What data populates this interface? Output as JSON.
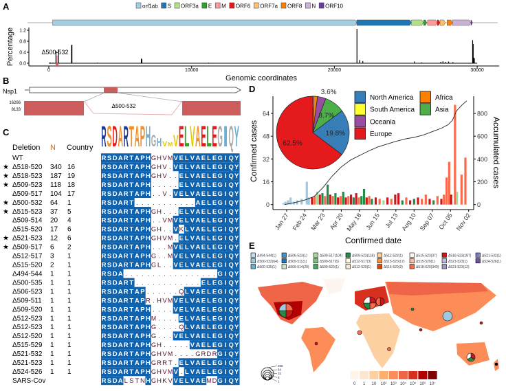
{
  "panels": {
    "a": "A",
    "b": "B",
    "c": "C",
    "d": "D",
    "e": "E"
  },
  "panel_a": {
    "genes": [
      {
        "name": "orf1ab",
        "start": 266,
        "end": 21555,
        "color": "#a6cee3"
      },
      {
        "name": "S",
        "start": 21563,
        "end": 25384,
        "color": "#1f78b4"
      },
      {
        "name": "ORF3a",
        "start": 25393,
        "end": 26220,
        "color": "#b2df8a"
      },
      {
        "name": "E",
        "start": 26245,
        "end": 26472,
        "color": "#33a02c"
      },
      {
        "name": "M",
        "start": 26523,
        "end": 27191,
        "color": "#fb9a99"
      },
      {
        "name": "ORF6",
        "start": 27202,
        "end": 27387,
        "color": "#e31a1c"
      },
      {
        "name": "ORF7a",
        "start": 27394,
        "end": 27759,
        "color": "#fdbf6f"
      },
      {
        "name": "ORF8",
        "start": 27894,
        "end": 28259,
        "color": "#ff7f00"
      },
      {
        "name": "N",
        "start": 28274,
        "end": 29533,
        "color": "#cab2d6"
      },
      {
        "name": "ORF10",
        "start": 29558,
        "end": 29674,
        "color": "#6a3d9a"
      }
    ],
    "chart_data": {
      "type": "bar",
      "xlabel": "Genomic coordinates",
      "ylabel": "Percentage",
      "xlim": [
        0,
        30000
      ],
      "ylim": [
        0,
        1.3
      ],
      "xticks": [
        0,
        10000,
        20000,
        30000
      ],
      "yticks": [
        "0.0",
        "0.4",
        "0.8",
        "1.2"
      ],
      "annotation": "Δ500-532",
      "peaks": [
        [
          100,
          0.03
        ],
        [
          300,
          0.02
        ],
        [
          500,
          0.45
        ],
        [
          680,
          0.5
        ],
        [
          1590,
          0.66
        ],
        [
          1620,
          0.67
        ],
        [
          3400,
          0.02
        ],
        [
          6480,
          0.17
        ],
        [
          6520,
          0.14
        ],
        [
          11200,
          0.02
        ],
        [
          14800,
          0.01
        ],
        [
          21580,
          1.25
        ],
        [
          21770,
          0.12
        ],
        [
          21990,
          0.08
        ],
        [
          25600,
          0.06
        ],
        [
          26100,
          0.03
        ],
        [
          27450,
          0.05
        ],
        [
          27600,
          0.07
        ],
        [
          27800,
          0.05
        ],
        [
          28000,
          0.06
        ],
        [
          28300,
          0.04
        ],
        [
          29680,
          0.84
        ],
        [
          29720,
          0.7
        ],
        [
          29760,
          0.2
        ],
        [
          29800,
          0.18
        ]
      ]
    }
  },
  "panel_b": {
    "gene_label": "Nsp1",
    "coverage_ticks": [
      "16266",
      "8133"
    ],
    "deletion_label": "Δ500-532"
  },
  "panel_c": {
    "headers": {
      "deletion": "Deletion",
      "n": "N",
      "country": "Country"
    },
    "wt_sequence": "RSDARTAPHGHVMVELVAELEGIQY",
    "logo_colors": {
      "R": "#1f3a93",
      "S": "#f28e2b",
      "D": "#e31a1c",
      "A": "#f28e2b",
      "T": "#f28e2b",
      "P": "#f28e2b",
      "H": "#6baed6",
      "G": "#aaaaaa",
      "V": "#e6c700",
      "M": "#e6c700",
      "E": "#e31a1c",
      "L": "#33a02c",
      "I": "#6baed6",
      "Q": "#aaaaaa",
      "Y": "#6baed6"
    },
    "logo_heights": [
      1,
      1,
      1,
      1,
      1,
      1,
      1,
      1,
      1,
      0.55,
      0.4,
      0.25,
      0.2,
      0.55,
      1,
      1,
      1,
      1,
      1,
      1,
      1,
      1,
      1,
      1,
      1
    ],
    "highlight_color": "#0f62ad",
    "rows": [
      {
        "star": false,
        "deletion": "WT",
        "n": "",
        "country": "",
        "seq": "RSDARTAPHGHVMVELVAELEGIQY"
      },
      {
        "star": true,
        "deletion": "Δ518-520",
        "n": "340",
        "country": "16",
        "seq": "RSDARTAPHGHV.VELVAELEGIQY"
      },
      {
        "star": true,
        "deletion": "Δ518-523",
        "n": "187",
        "country": "19",
        "seq": "RSDARTAPHGHV..ELVAELEGIQY"
      },
      {
        "star": true,
        "deletion": "Δ509-523",
        "n": "118",
        "country": "18",
        "seq": "RSDARTAPH.....ELVAELEGIQY"
      },
      {
        "star": false,
        "deletion": "Δ509-517",
        "n": "104",
        "country": "17",
        "seq": "RSDARTAPH..V.VELVAELEGIQY"
      },
      {
        "star": true,
        "deletion": "Δ500-532",
        "n": "64",
        "country": "1",
        "seq": "RSDART...........AELEGIQY"
      },
      {
        "star": true,
        "deletion": "Δ515-523",
        "n": "37",
        "country": "5",
        "seq": "RSDARTAPHGH...ELVAELEGIQY"
      },
      {
        "star": false,
        "deletion": "Δ509-514",
        "n": "20",
        "country": "4",
        "seq": "RSDARTAPH..VMVELVAELEGIQY"
      },
      {
        "star": false,
        "deletion": "Δ515-520",
        "n": "17",
        "country": "6",
        "seq": "RSDARTAPHGH..VKLVAELEGIQY"
      },
      {
        "star": true,
        "deletion": "Δ521-523",
        "n": "12",
        "country": "6",
        "seq": "RSDARTAPHGHVM.ELVAELEGIQY"
      },
      {
        "star": true,
        "deletion": "Δ509-517",
        "n": "6",
        "country": "2",
        "seq": "RSDARTAPH...MVELVAELEGIQY"
      },
      {
        "star": false,
        "deletion": "Δ512-517",
        "n": "3",
        "country": "1",
        "seq": "RSDARTAPHG..MVELVAELEGIQY"
      },
      {
        "star": false,
        "deletion": "Δ515-520",
        "n": "2",
        "country": "1",
        "seq": "RSDARTAPHGL..VELVAELEGIQY"
      },
      {
        "star": false,
        "deletion": "Δ494-544",
        "n": "1",
        "country": "1",
        "seq": "RSDA.................GIQY"
      },
      {
        "star": false,
        "deletion": "Δ500-535",
        "n": "1",
        "country": "1",
        "seq": "RSDART............ELEGIQY"
      },
      {
        "star": false,
        "deletion": "Δ506-523",
        "n": "1",
        "country": "1",
        "seq": "RSDARTAP......QLVAELEGIQY"
      },
      {
        "star": false,
        "deletion": "Δ509-511",
        "n": "1",
        "country": "1",
        "seq": "RSDARTAPR.HVMVELVAELEGIQY"
      },
      {
        "star": false,
        "deletion": "Δ509-520",
        "n": "1",
        "country": "1",
        "seq": "RSDARTAPH....VELVAELEGIQY"
      },
      {
        "star": false,
        "deletion": "Δ512-523",
        "n": "1",
        "country": "1",
        "seq": "RSDARTAPHM....ELVAELEGIQY"
      },
      {
        "star": false,
        "deletion": "Δ512-523",
        "n": "1",
        "country": "1",
        "seq": "RSDARTAPHG....QLVAELEGIQY"
      },
      {
        "star": false,
        "deletion": "Δ512-520",
        "n": "1",
        "country": "1",
        "seq": "RSDARTAPHG...VELVAELEGIQY"
      },
      {
        "star": false,
        "deletion": "Δ515-529",
        "n": "1",
        "country": "1",
        "seq": "RSDARTAPHGH.....VAELEGIQY"
      },
      {
        "star": false,
        "deletion": "Δ521-532",
        "n": "1",
        "country": "1",
        "seq": "RSDARTAPHGHVM....GRDRGIQY"
      },
      {
        "star": false,
        "deletion": "Δ521-523",
        "n": "1",
        "country": "1",
        "seq": "RSDARTAPHGRRT.ELVAELEGIQY"
      },
      {
        "star": false,
        "deletion": "Δ524-526",
        "n": "1",
        "country": "1",
        "seq": "RSDARTAPHGHVMV.LVAELEGIQY"
      },
      {
        "star": false,
        "deletion": "SARS-Cov",
        "n": "",
        "country": "",
        "seq": "RSDALSTNHGHKVVELVAEMDGIQY"
      }
    ]
  },
  "chart_data": [
    {
      "type": "bar",
      "xlabel": "Confirmed date",
      "ylabel": "Confirmed cases",
      "ylabel_right": "Accumulated cases",
      "yticks": [
        0,
        16,
        32,
        48,
        64
      ],
      "yticks_right": [
        0,
        200,
        400,
        600,
        800
      ],
      "ylim": [
        0,
        72
      ],
      "ylim_right": [
        0,
        900
      ],
      "xticks": [
        "Jan 27",
        "Feb 24",
        "Mar 23",
        "Apr 20",
        "May 18",
        "Jun 15",
        "Jul 13",
        "Aug 10",
        "Sep 07",
        "Oct 05",
        "Nov 02"
      ],
      "bars": [
        [
          "Jan 22",
          1,
          "#9ecae1"
        ],
        [
          "Jan 25",
          2,
          "#9ecae1"
        ],
        [
          "Jan 29",
          3,
          "#9ecae1"
        ],
        [
          "Feb 02",
          5,
          "#9ecae1"
        ],
        [
          "Feb 07",
          2,
          "#9ecae1"
        ],
        [
          "Feb 12",
          3,
          "#9ecae1"
        ],
        [
          "Feb 19",
          4,
          "#9ecae1"
        ],
        [
          "Feb 27",
          16,
          "#9ecae1"
        ],
        [
          "Mar 01",
          5,
          "#9ecae1"
        ],
        [
          "Mar 06",
          5,
          "#cb181d"
        ],
        [
          "Mar 10",
          6,
          "#fb6a4a"
        ],
        [
          "Mar 14",
          9,
          "#a1d99b"
        ],
        [
          "Mar 18",
          7,
          "#cb181d"
        ],
        [
          "Mar 22",
          8,
          "#238b45"
        ],
        [
          "Mar 26",
          6,
          "#fb6a4a"
        ],
        [
          "Mar 30",
          14,
          "#238b45"
        ],
        [
          "Apr 03",
          7,
          "#cb181d"
        ],
        [
          "Apr 07",
          6,
          "#fb6a4a"
        ],
        [
          "Apr 11",
          8,
          "#238b45"
        ],
        [
          "Apr 15",
          5,
          "#cb181d"
        ],
        [
          "Apr 19",
          6,
          "#fb6a4a"
        ],
        [
          "Apr 23",
          9,
          "#238b45"
        ],
        [
          "Apr 27",
          5,
          "#cb181d"
        ],
        [
          "May 01",
          6,
          "#fb6a4a"
        ],
        [
          "May 05",
          7,
          "#cb181d"
        ],
        [
          "May 09",
          5,
          "#238b45"
        ],
        [
          "May 13",
          8,
          "#cb181d"
        ],
        [
          "May 17",
          5,
          "#fb6a4a"
        ],
        [
          "May 21",
          6,
          "#238b45"
        ],
        [
          "May 25",
          11,
          "#238b45"
        ],
        [
          "May 29",
          5,
          "#cb181d"
        ],
        [
          "Jun 02",
          6,
          "#fb6a4a"
        ],
        [
          "Jun 06",
          4,
          "#238b45"
        ],
        [
          "Jun 12",
          5,
          "#cb181d"
        ],
        [
          "Jun 18",
          4,
          "#fb6a4a"
        ],
        [
          "Jun 24",
          3,
          "#a1d99b"
        ],
        [
          "Jun 30",
          5,
          "#cb181d"
        ],
        [
          "Jul 06",
          4,
          "#fb6a4a"
        ],
        [
          "Jul 12",
          7,
          "#cb181d"
        ],
        [
          "Jul 17",
          8,
          "#cb181d"
        ],
        [
          "Jul 23",
          3,
          "#238b45"
        ],
        [
          "Jul 29",
          5,
          "#fb6a4a"
        ],
        [
          "Aug 04",
          3,
          "#cb181d"
        ],
        [
          "Aug 10",
          4,
          "#238b45"
        ],
        [
          "Aug 16",
          5,
          "#cb181d"
        ],
        [
          "Aug 22",
          4,
          "#fb6a4a"
        ],
        [
          "Aug 28",
          7,
          "#fb6a4a"
        ],
        [
          "Sep 03",
          4,
          "#cb181d"
        ],
        [
          "Sep 09",
          3,
          "#238b45"
        ],
        [
          "Sep 15",
          6,
          "#fb6a4a"
        ],
        [
          "Sep 21",
          4,
          "#cb181d"
        ],
        [
          "Sep 25",
          7,
          "#fb6a4a"
        ],
        [
          "Sep 29",
          19,
          "#fb6a4a"
        ],
        [
          "Oct 03",
          30,
          "#fb6a4a"
        ],
        [
          "Oct 06",
          7,
          "#cb181d"
        ],
        [
          "Oct 12",
          70,
          "#fb6a4a"
        ],
        [
          "Oct 15",
          9,
          "#a1d99b"
        ],
        [
          "Oct 22",
          21,
          "#fb6a4a"
        ],
        [
          "Oct 28",
          33,
          "#fb6a4a"
        ]
      ],
      "accumulated": [
        [
          "Jan 24",
          0
        ],
        [
          "Feb 10",
          20
        ],
        [
          "Feb 24",
          40
        ],
        [
          "Mar 09",
          70
        ],
        [
          "Mar 23",
          150
        ],
        [
          "Apr 06",
          250
        ],
        [
          "Apr 20",
          330
        ],
        [
          "May 04",
          390
        ],
        [
          "May 18",
          430
        ],
        [
          "Jun 01",
          470
        ],
        [
          "Jun 15",
          505
        ],
        [
          "Jun 29",
          530
        ],
        [
          "Jul 13",
          555
        ],
        [
          "Jul 27",
          575
        ],
        [
          "Aug 10",
          590
        ],
        [
          "Aug 24",
          610
        ],
        [
          "Sep 07",
          640
        ],
        [
          "Sep 21",
          670
        ],
        [
          "Oct 01",
          700
        ],
        [
          "Oct 08",
          740
        ],
        [
          "Oct 14",
          820
        ],
        [
          "Oct 22",
          870
        ],
        [
          "Oct 30",
          910
        ]
      ]
    },
    {
      "type": "pie",
      "slices": [
        {
          "name": "South America",
          "value": 0.5,
          "color": "#ffff33",
          "label": ""
        },
        {
          "name": "Africa",
          "value": 1.5,
          "color": "#ff7f00",
          "label": ""
        },
        {
          "name": "Oceania",
          "value": 3.6,
          "color": "#984ea3",
          "label": "3.6%"
        },
        {
          "name": "Asia",
          "value": 8.7,
          "color": "#4daf4a",
          "label": "8.7%"
        },
        {
          "name": "North America",
          "value": 19.8,
          "color": "#377eb8",
          "label": "19.8%"
        },
        {
          "name": "Europe",
          "value": 62.5,
          "color": "#e41a1c",
          "label": "62.5%"
        }
      ],
      "legend": [
        "North America",
        "South America",
        "Oceania",
        "Europe",
        "Africa",
        "Asia"
      ]
    }
  ],
  "panel_e": {
    "legend": [
      [
        "Δ494-544(1)",
        "#c6dbef"
      ],
      [
        "Δ500-532(64)",
        "#9ecae1"
      ],
      [
        "Δ500-535(1)",
        "#6baed6"
      ],
      [
        "Δ506-523(1)",
        "#4292c6"
      ],
      [
        "Δ509-511(1)",
        "#2171b5"
      ],
      [
        "Δ509-514(20)",
        "#c7e9c0"
      ],
      [
        "Δ509-517(104)",
        "#a1d99b"
      ],
      [
        "Δ509-517(6)",
        "#74c476"
      ],
      [
        "Δ509-520(1)",
        "#41ab5d"
      ],
      [
        "Δ509-523(118)",
        "#238b45"
      ],
      [
        "Δ512-517(3)",
        "#ffffe5"
      ],
      [
        "Δ512-520(1)",
        "#fee6ce"
      ],
      [
        "Δ512-523(1)",
        "#fdd0a2"
      ],
      [
        "Δ515-520(17)",
        "#fd8d3c"
      ],
      [
        "Δ515-520(2)",
        "#d94801"
      ],
      [
        "Δ515-523(37)",
        "#fff5f0"
      ],
      [
        "Δ515-529(1)",
        "#fcbba1"
      ],
      [
        "Δ518-520(340)",
        "#fb6a4a"
      ],
      [
        "Δ518-523(187)",
        "#cb181d"
      ],
      [
        "Δ521-523(1)",
        "#bcbddc"
      ],
      [
        "Δ521-523(12)",
        "#9e9ac8"
      ],
      [
        "Δ521-532(1)",
        "#807dba"
      ],
      [
        "Δ524-526(1)",
        "#6a51a3"
      ]
    ],
    "scale_labels": [
      "0",
      "1",
      "10",
      "10²",
      "10³",
      "10⁴",
      "10⁵",
      "10⁶",
      "10⁷"
    ],
    "scale_colors": [
      "#fff5eb",
      "#fee6ce",
      "#fdd0a2",
      "#fdae6b",
      "#fc8d59",
      "#ef6548",
      "#d7301f",
      "#b30000",
      "#7f0000"
    ],
    "size_labels": [
      "256",
      "64",
      "32",
      "8",
      "1"
    ]
  }
}
